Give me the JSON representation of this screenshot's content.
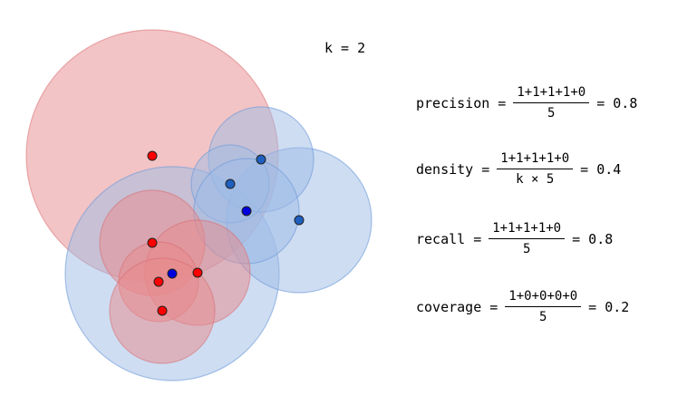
{
  "k_label": "k = 2",
  "colors": {
    "real": "#ff0000",
    "fake_blue": "#1f5fbf",
    "fake_navy": "#0000dd",
    "real_ball_fill": "#e8898b",
    "fake_ball_fill": "#9dbbe6"
  },
  "formulas": {
    "precision": {
      "name": "precision =",
      "numerator": "1+1+1+1+0",
      "denominator": "5",
      "result": "= 0.8"
    },
    "density": {
      "name": "density =",
      "numerator": "1+1+1+1+0",
      "denominator": "k × 5",
      "result": "= 0.4"
    },
    "recall": {
      "name": "recall =",
      "numerator": "1+1+1+1+0",
      "denominator": "5",
      "result": "= 0.8"
    },
    "coverage": {
      "name": "coverage =",
      "numerator": "1+0+0+0+0",
      "denominator": "5",
      "result": "= 0.2"
    }
  }
}
